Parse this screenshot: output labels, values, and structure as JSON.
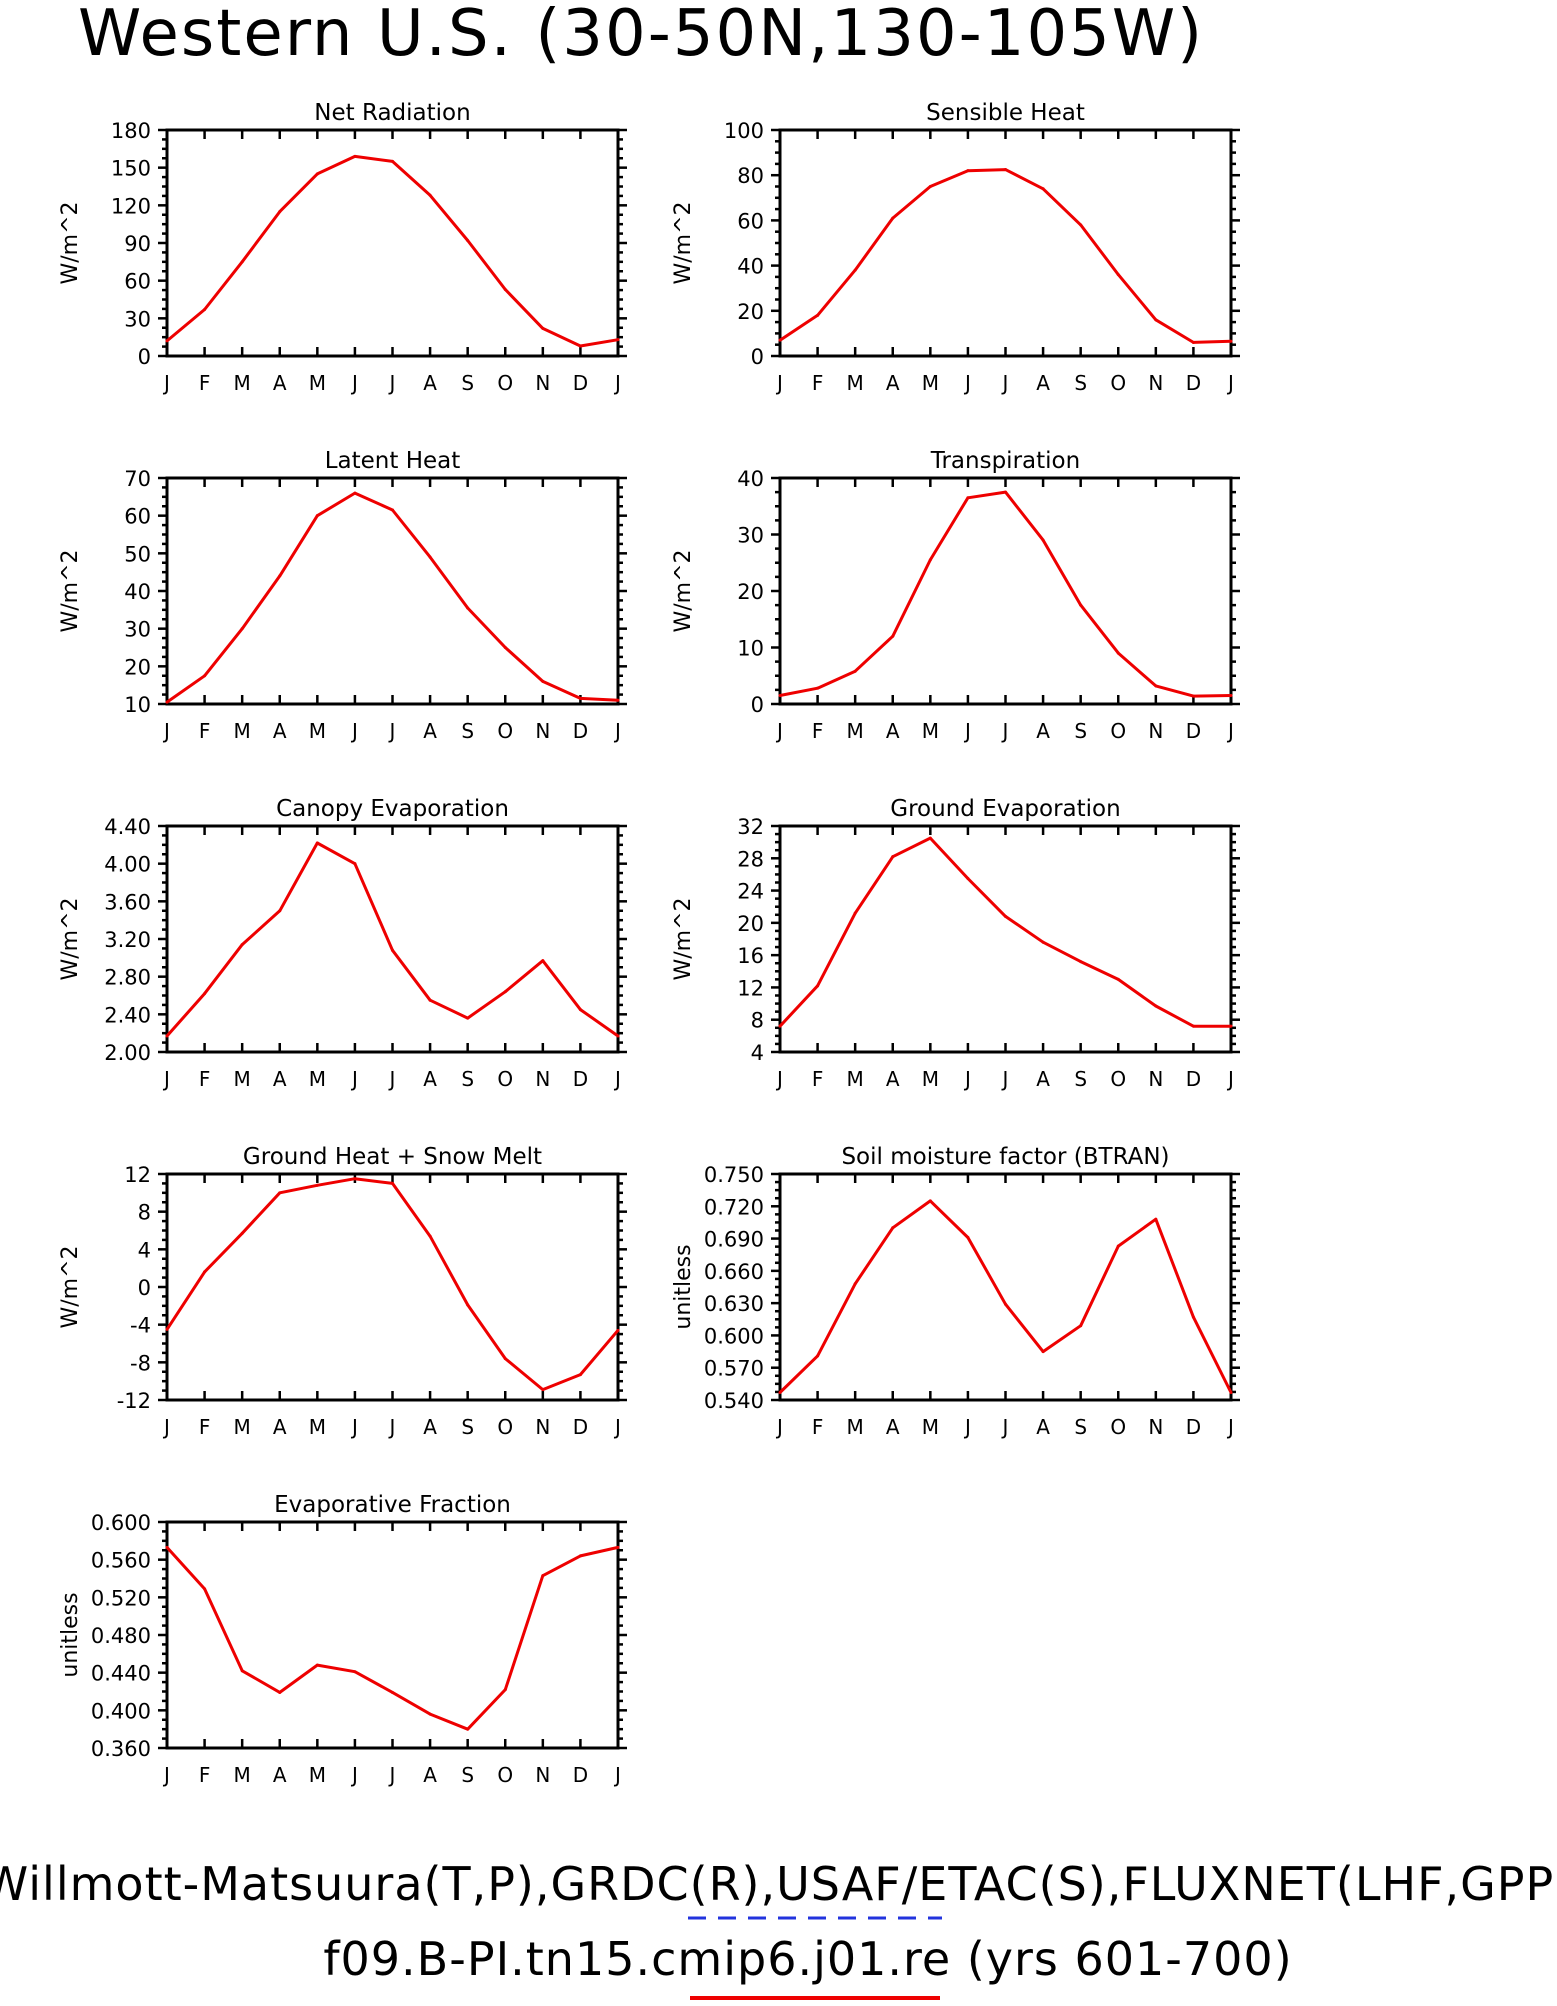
{
  "page": {
    "title": "Western U.S. (30-50N,130-105W)",
    "footer_line1": "Willmott-Matsuura(T,P),GRDC(R),USAF/ETAC(S),FLUXNET(LHF,GPP)",
    "footer_line2": "f09.B-PI.tn15.cmip6.j01.re (yrs 601-700)",
    "colors": {
      "series": "#ee0000",
      "legend_dash": "#2233dd",
      "axes": "#000000"
    }
  },
  "chart_data": [
    {
      "type": "line",
      "title": "Net Radiation",
      "ylabel": "W/m^2",
      "categories": [
        "J",
        "F",
        "M",
        "A",
        "M",
        "J",
        "J",
        "A",
        "S",
        "O",
        "N",
        "D",
        "J"
      ],
      "ylim": [
        0,
        180
      ],
      "yticks": [
        "0",
        "30",
        "60",
        "90",
        "120",
        "150",
        "180"
      ],
      "values": [
        12,
        37,
        75,
        115,
        145,
        159,
        155,
        128,
        92,
        53,
        22,
        8,
        13
      ]
    },
    {
      "type": "line",
      "title": "Sensible Heat",
      "ylabel": "W/m^2",
      "categories": [
        "J",
        "F",
        "M",
        "A",
        "M",
        "J",
        "J",
        "A",
        "S",
        "O",
        "N",
        "D",
        "J"
      ],
      "ylim": [
        0,
        100
      ],
      "yticks": [
        "0",
        "20",
        "40",
        "60",
        "80",
        "100"
      ],
      "values": [
        7,
        18,
        38,
        61,
        75,
        82,
        82.5,
        74,
        58,
        36,
        16,
        6,
        6.5
      ]
    },
    {
      "type": "line",
      "title": "Latent Heat",
      "ylabel": "W/m^2",
      "categories": [
        "J",
        "F",
        "M",
        "A",
        "M",
        "J",
        "J",
        "A",
        "S",
        "O",
        "N",
        "D",
        "J"
      ],
      "ylim": [
        10,
        70
      ],
      "yticks": [
        "10",
        "20",
        "30",
        "40",
        "50",
        "60",
        "70"
      ],
      "values": [
        10.5,
        17.5,
        30,
        44,
        60,
        66,
        61.5,
        49,
        35.5,
        25,
        16,
        11.5,
        11
      ]
    },
    {
      "type": "line",
      "title": "Transpiration",
      "ylabel": "W/m^2",
      "categories": [
        "J",
        "F",
        "M",
        "A",
        "M",
        "J",
        "J",
        "A",
        "S",
        "O",
        "N",
        "D",
        "J"
      ],
      "ylim": [
        0,
        40
      ],
      "yticks": [
        "0",
        "10",
        "20",
        "30",
        "40"
      ],
      "values": [
        1.5,
        2.8,
        5.8,
        12,
        25.5,
        36.5,
        37.5,
        29,
        17.5,
        9,
        3.2,
        1.4,
        1.5
      ]
    },
    {
      "type": "line",
      "title": "Canopy Evaporation",
      "ylabel": "W/m^2",
      "categories": [
        "J",
        "F",
        "M",
        "A",
        "M",
        "J",
        "J",
        "A",
        "S",
        "O",
        "N",
        "D",
        "J"
      ],
      "ylim": [
        2.0,
        4.4
      ],
      "yticks": [
        "2.00",
        "2.40",
        "2.80",
        "3.20",
        "3.60",
        "4.00",
        "4.40"
      ],
      "values": [
        2.17,
        2.62,
        3.14,
        3.5,
        4.22,
        4.0,
        3.08,
        2.55,
        2.36,
        2.64,
        2.97,
        2.45,
        2.17
      ]
    },
    {
      "type": "line",
      "title": "Ground Evaporation",
      "ylabel": "W/m^2",
      "categories": [
        "J",
        "F",
        "M",
        "A",
        "M",
        "J",
        "J",
        "A",
        "S",
        "O",
        "N",
        "D",
        "J"
      ],
      "ylim": [
        4,
        32
      ],
      "yticks": [
        "4",
        "8",
        "12",
        "16",
        "20",
        "24",
        "28",
        "32"
      ],
      "values": [
        7.2,
        12.2,
        21.2,
        28.2,
        30.5,
        25.5,
        20.8,
        17.6,
        15.2,
        13.0,
        9.7,
        7.2,
        7.2
      ]
    },
    {
      "type": "line",
      "title": "Ground Heat + Snow Melt",
      "ylabel": "W/m^2",
      "categories": [
        "J",
        "F",
        "M",
        "A",
        "M",
        "J",
        "J",
        "A",
        "S",
        "O",
        "N",
        "D",
        "J"
      ],
      "ylim": [
        -12,
        12
      ],
      "yticks": [
        "-12",
        "-8",
        "-4",
        "0",
        "4",
        "8",
        "12"
      ],
      "values": [
        -4.5,
        1.6,
        5.7,
        10.0,
        10.8,
        11.5,
        11.0,
        5.4,
        -1.9,
        -7.6,
        -10.9,
        -9.3,
        -4.6
      ]
    },
    {
      "type": "line",
      "title": "Soil moisture factor (BTRAN)",
      "ylabel": "unitless",
      "categories": [
        "J",
        "F",
        "M",
        "A",
        "M",
        "J",
        "J",
        "A",
        "S",
        "O",
        "N",
        "D",
        "J"
      ],
      "ylim": [
        0.54,
        0.75
      ],
      "yticks": [
        "0.540",
        "0.570",
        "0.600",
        "0.630",
        "0.660",
        "0.690",
        "0.720",
        "0.750"
      ],
      "values": [
        0.547,
        0.581,
        0.648,
        0.7,
        0.725,
        0.691,
        0.629,
        0.585,
        0.609,
        0.683,
        0.708,
        0.617,
        0.547
      ]
    },
    {
      "type": "line",
      "title": "Evaporative Fraction",
      "ylabel": "unitless",
      "categories": [
        "J",
        "F",
        "M",
        "A",
        "M",
        "J",
        "J",
        "A",
        "S",
        "O",
        "N",
        "D",
        "J"
      ],
      "ylim": [
        0.36,
        0.6
      ],
      "yticks": [
        "0.360",
        "0.400",
        "0.440",
        "0.480",
        "0.520",
        "0.560",
        "0.600"
      ],
      "values": [
        0.573,
        0.529,
        0.442,
        0.419,
        0.448,
        0.441,
        0.419,
        0.396,
        0.38,
        0.422,
        0.543,
        0.564,
        0.573
      ]
    }
  ]
}
